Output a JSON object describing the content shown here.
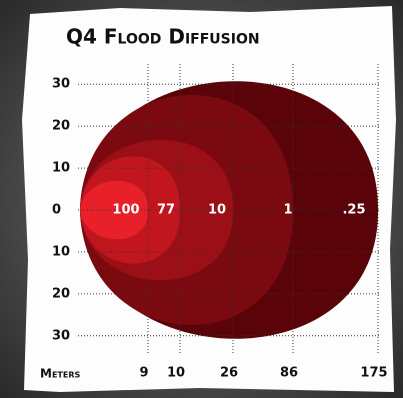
{
  "chart_data": {
    "type": "diffusion",
    "title": "Q4 Flood Diffusion",
    "x_label": "Meters",
    "categories": [
      "9",
      "10",
      "26",
      "86",
      "175"
    ],
    "values": [
      100,
      77,
      10,
      1,
      0.25
    ],
    "value_labels": [
      "100",
      "77",
      "10",
      "1",
      ".25"
    ],
    "colors": [
      "#e8202a",
      "#c2161f",
      "#9c0f17",
      "#7a0a10",
      "#5a0309"
    ],
    "ylim": [
      -31,
      31
    ],
    "yticks": [
      30,
      20,
      10,
      0,
      {
        "value": -10,
        "label": "10"
      },
      {
        "value": -20,
        "label": "20"
      },
      {
        "value": -30,
        "label": "30"
      }
    ],
    "grid": true
  }
}
